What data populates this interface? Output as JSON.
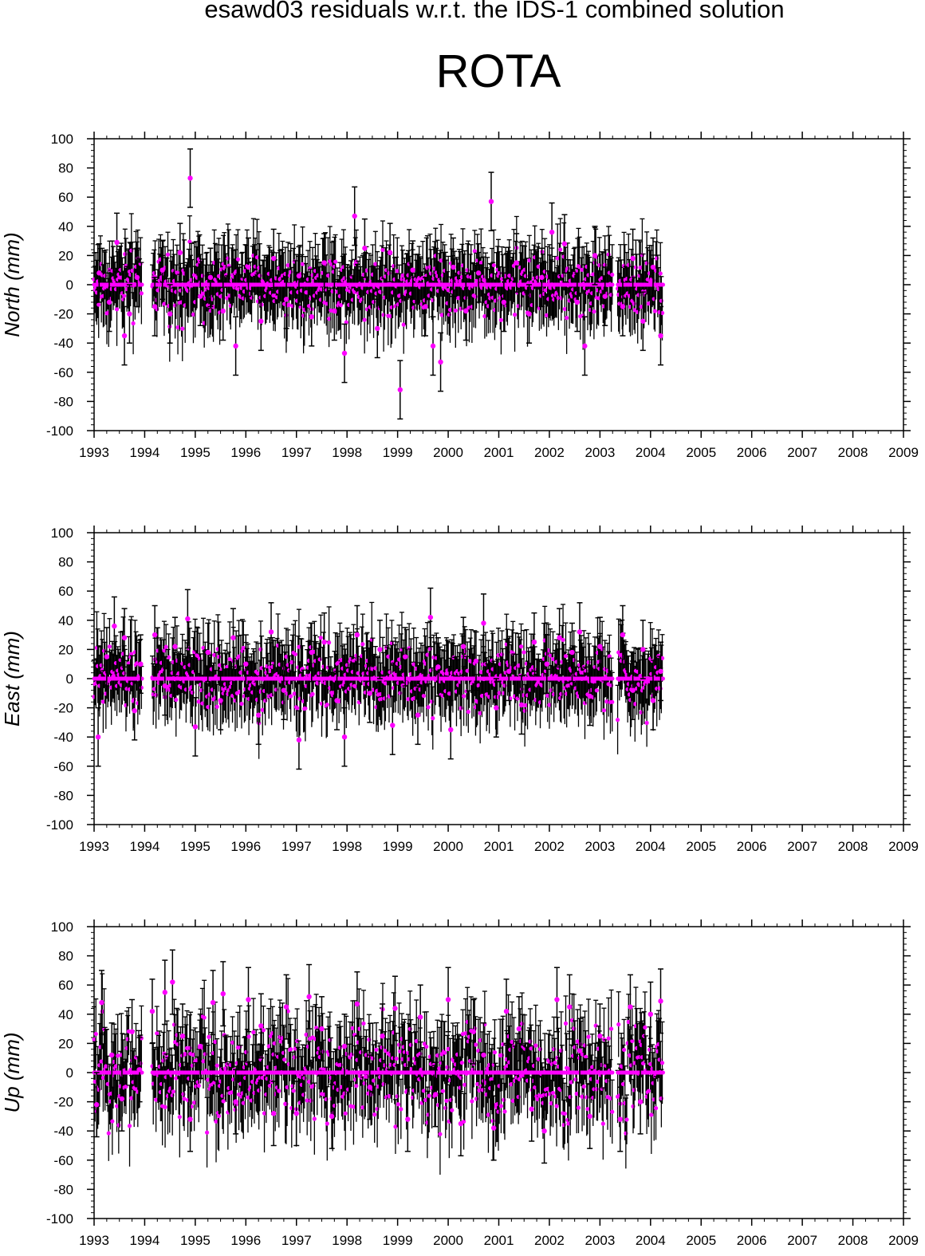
{
  "figure": {
    "suptitle": "esawd03 residuals w.r.t. the IDS-1 combined solution",
    "station": "ROTA",
    "colors": {
      "point": "#ff00ff",
      "errorbar": "#000000",
      "axis": "#000000"
    }
  },
  "chart_data": [
    {
      "type": "scatter",
      "ylabel": "North (mm)",
      "xlim": [
        1993,
        2009
      ],
      "ylim": [
        -100,
        100
      ],
      "xticks": [
        "1993",
        "1994",
        "1995",
        "1996",
        "1997",
        "1998",
        "1999",
        "2000",
        "2001",
        "2002",
        "2003",
        "2004",
        "2005",
        "2006",
        "2007",
        "2008",
        "2009"
      ],
      "yticks": [
        "100",
        "80",
        "60",
        "40",
        "20",
        "0",
        "-20",
        "-40",
        "-60",
        "-80",
        "-100"
      ],
      "data_span": [
        1993.0,
        2004.25
      ],
      "gaps": [
        [
          1993.95,
          1994.15
        ],
        [
          2003.25,
          2003.35
        ]
      ],
      "error_bar_mm": 20,
      "series": [
        {
          "x": [
            1993.1,
            1993.3,
            1993.45,
            1993.6,
            1993.7,
            1993.85,
            1994.2,
            1994.35,
            1994.5,
            1994.7,
            1994.9,
            1995.1,
            1995.3,
            1995.55,
            1995.8,
            1996.05,
            1996.3,
            1996.55,
            1996.8,
            1997.05,
            1997.3,
            1997.55,
            1997.75,
            1997.95,
            1998.15,
            1998.35,
            1998.6,
            1998.85,
            1999.05,
            1999.3,
            1999.55,
            1999.7,
            1999.85,
            2000.1,
            2000.35,
            2000.6,
            2000.85,
            2001.1,
            2001.35,
            2001.6,
            2001.85,
            2002.05,
            2002.3,
            2002.55,
            2002.7,
            2002.9,
            2003.1,
            2003.45,
            2003.65,
            2003.85,
            2004.05,
            2004.2
          ],
          "y": [
            8,
            -12,
            29,
            -35,
            -20,
            5,
            -15,
            10,
            -20,
            22,
            73,
            -8,
            5,
            -18,
            -42,
            12,
            -25,
            18,
            -10,
            6,
            -22,
            15,
            -18,
            -47,
            47,
            25,
            -30,
            22,
            -72,
            10,
            -15,
            -42,
            -53,
            12,
            -18,
            8,
            57,
            -12,
            15,
            -20,
            5,
            36,
            28,
            -12,
            -42,
            20,
            -8,
            -15,
            18,
            -25,
            12,
            -35
          ]
        }
      ]
    },
    {
      "type": "scatter",
      "ylabel": "East (mm)",
      "xlim": [
        1993,
        2009
      ],
      "ylim": [
        -100,
        100
      ],
      "xticks": [
        "1993",
        "1994",
        "1995",
        "1996",
        "1997",
        "1998",
        "1999",
        "2000",
        "2001",
        "2002",
        "2003",
        "2004",
        "2005",
        "2006",
        "2007",
        "2008",
        "2009"
      ],
      "yticks": [
        "100",
        "80",
        "60",
        "40",
        "20",
        "0",
        "-20",
        "-40",
        "-60",
        "-80",
        "-100"
      ],
      "data_span": [
        1993.0,
        2004.25
      ],
      "gaps": [
        [
          1993.95,
          1994.15
        ],
        [
          2003.25,
          2003.35
        ]
      ],
      "error_bar_mm": 20,
      "series": [
        {
          "x": [
            1993.08,
            1993.25,
            1993.4,
            1993.6,
            1993.8,
            1993.92,
            1994.2,
            1994.4,
            1994.6,
            1994.85,
            1995.0,
            1995.25,
            1995.5,
            1995.75,
            1996.0,
            1996.25,
            1996.5,
            1996.75,
            1997.05,
            1997.3,
            1997.55,
            1997.8,
            1997.95,
            1998.2,
            1998.45,
            1998.65,
            1998.9,
            1999.15,
            1999.4,
            1999.65,
            1999.8,
            2000.05,
            2000.3,
            2000.55,
            2000.7,
            2000.95,
            2001.2,
            2001.45,
            2001.7,
            2001.95,
            2002.2,
            2002.45,
            2002.6,
            2002.8,
            2003.0,
            2003.45,
            2003.65,
            2003.85,
            2004.05,
            2004.2
          ],
          "y": [
            -40,
            15,
            36,
            28,
            -22,
            10,
            30,
            -5,
            22,
            41,
            -33,
            18,
            -15,
            28,
            10,
            -25,
            32,
            -8,
            -42,
            18,
            25,
            -15,
            -40,
            30,
            -10,
            20,
            -32,
            15,
            -25,
            42,
            8,
            -35,
            22,
            12,
            38,
            -20,
            5,
            -18,
            25,
            10,
            28,
            18,
            32,
            -12,
            22,
            30,
            -8,
            20,
            -15,
            5
          ]
        }
      ]
    },
    {
      "type": "scatter",
      "ylabel": "Up (mm)",
      "xlim": [
        1993,
        2009
      ],
      "ylim": [
        -100,
        100
      ],
      "xticks": [
        "1993",
        "1994",
        "1995",
        "1996",
        "1997",
        "1998",
        "1999",
        "2000",
        "2001",
        "2002",
        "2003",
        "2004",
        "2005",
        "2006",
        "2007",
        "2008",
        "2009"
      ],
      "yticks": [
        "100",
        "80",
        "60",
        "40",
        "20",
        "0",
        "-20",
        "-40",
        "-60",
        "-80",
        "-100"
      ],
      "data_span": [
        1993.0,
        2004.25
      ],
      "gaps": [
        [
          1993.95,
          1994.15
        ],
        [
          2003.25,
          2003.35
        ]
      ],
      "error_bar_mm": 22,
      "series": [
        {
          "x": [
            1993.05,
            1993.15,
            1993.35,
            1993.55,
            1993.75,
            1993.9,
            1994.15,
            1994.4,
            1994.55,
            1994.75,
            1994.9,
            1995.1,
            1995.35,
            1995.55,
            1995.8,
            1996.05,
            1996.3,
            1996.55,
            1996.8,
            1997.0,
            1997.25,
            1997.5,
            1997.7,
            1997.95,
            1998.2,
            1998.45,
            1998.7,
            1998.95,
            1999.2,
            1999.45,
            1999.75,
            2000.0,
            2000.25,
            2000.5,
            2000.7,
            2000.9,
            2001.15,
            2001.4,
            2001.65,
            2001.9,
            2002.15,
            2002.4,
            2002.6,
            2002.8,
            2003.0,
            2003.4,
            2003.6,
            2003.8,
            2004.0,
            2004.2
          ],
          "y": [
            -22,
            48,
            12,
            -18,
            28,
            2,
            42,
            55,
            62,
            25,
            -32,
            18,
            48,
            54,
            -20,
            50,
            32,
            -28,
            45,
            -28,
            52,
            30,
            -30,
            18,
            47,
            -10,
            25,
            44,
            -32,
            38,
            -15,
            50,
            -35,
            28,
            12,
            -38,
            42,
            30,
            -25,
            -40,
            50,
            45,
            15,
            -30,
            25,
            -32,
            45,
            -20,
            40,
            49
          ]
        }
      ]
    }
  ]
}
